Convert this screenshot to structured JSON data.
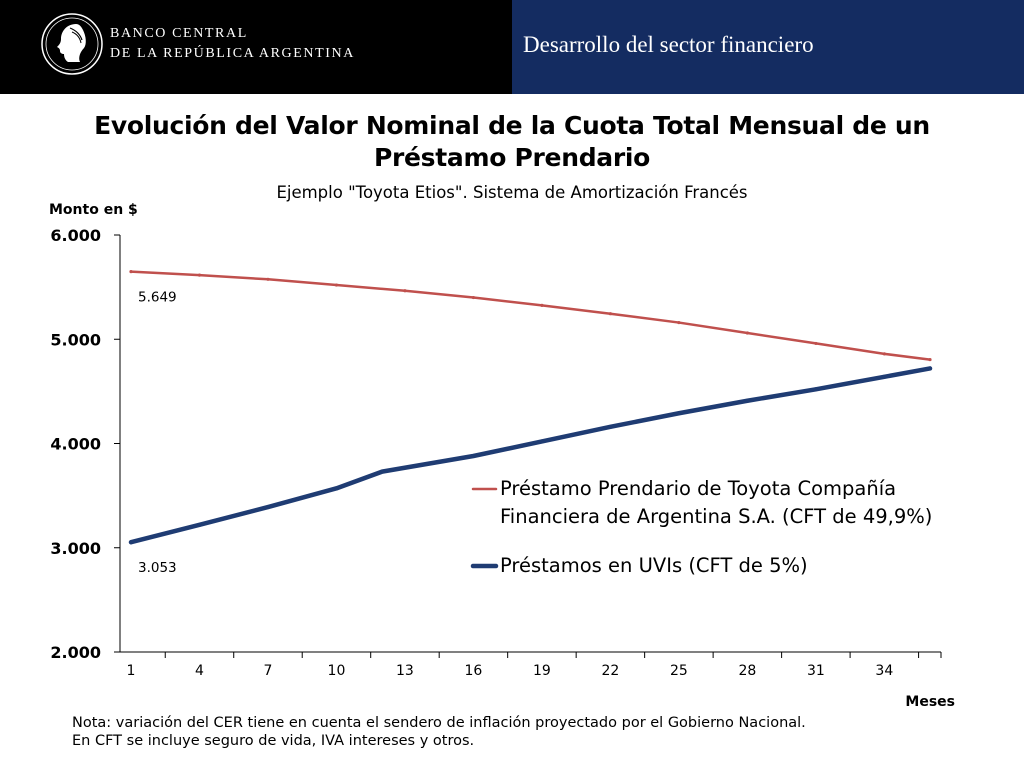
{
  "header": {
    "bank_name_line1": "BANCO CENTRAL",
    "bank_name_line2": "DE LA REPÚBLICA ARGENTINA",
    "section_title": "Desarrollo del sector financiero",
    "logo_icon": "seal-profile-icon",
    "left_bg": "#000000",
    "right_bg": "#142c61"
  },
  "note": {
    "line1": "Nota: variación del CER tiene en cuenta el sendero de inflación proyectado por el Gobierno Nacional.",
    "line2": "En CFT se incluye seguro de vida, IVA intereses y otros."
  },
  "chart_data": {
    "type": "line",
    "title": "Evolución del Valor Nominal de la Cuota Total Mensual de un Préstamo Prendario",
    "subtitle": "Ejemplo \"Toyota Etios\". Sistema de Amortización Francés",
    "ylabel": "Monto en $",
    "xlabel": "Meses",
    "ylim": [
      2000,
      6000
    ],
    "yticks": [
      2000,
      3000,
      4000,
      5000,
      6000
    ],
    "ytick_labels": [
      "2.000",
      "3.000",
      "4.000",
      "5.000",
      "6.000"
    ],
    "xticks": [
      1,
      4,
      7,
      10,
      13,
      16,
      19,
      22,
      25,
      28,
      31,
      34
    ],
    "xlim": [
      1,
      36
    ],
    "grid": false,
    "legend_position": "center-right",
    "series": [
      {
        "name": "Préstamo Prendario de Toyota Compañía Financiera de Argentina S.A. (CFT de 49,9%)",
        "color": "#c0504d",
        "points": [
          [
            1,
            5649
          ],
          [
            4,
            5615
          ],
          [
            7,
            5575
          ],
          [
            10,
            5520
          ],
          [
            13,
            5465
          ],
          [
            16,
            5400
          ],
          [
            19,
            5325
          ],
          [
            22,
            5245
          ],
          [
            25,
            5160
          ],
          [
            28,
            5060
          ],
          [
            31,
            4960
          ],
          [
            34,
            4860
          ],
          [
            36,
            4805
          ]
        ],
        "start_label": "5.649"
      },
      {
        "name": "Préstamos en UVIs (CFT de 5%)",
        "color": "#1f3c73",
        "points": [
          [
            1,
            3053
          ],
          [
            4,
            3220
          ],
          [
            7,
            3390
          ],
          [
            10,
            3570
          ],
          [
            12,
            3730
          ],
          [
            16,
            3880
          ],
          [
            19,
            4020
          ],
          [
            22,
            4160
          ],
          [
            25,
            4290
          ],
          [
            28,
            4410
          ],
          [
            31,
            4520
          ],
          [
            34,
            4640
          ],
          [
            36,
            4720
          ]
        ],
        "start_label": "3.053"
      }
    ]
  }
}
